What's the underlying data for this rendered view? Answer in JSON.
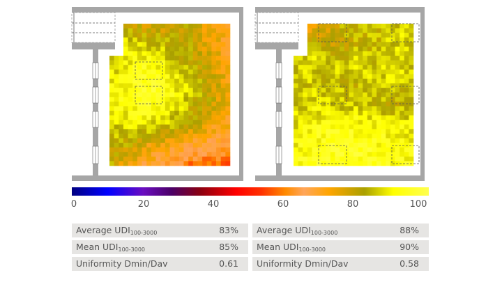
{
  "chart_data": {
    "type": "heatmap",
    "colorbar": {
      "ticks": [
        "0",
        "20",
        "40",
        "60",
        "80",
        "100"
      ],
      "range": [
        0,
        100
      ],
      "stops": [
        [
          0,
          "#000080"
        ],
        [
          10,
          "#0000ff"
        ],
        [
          20,
          "#6a0dc0"
        ],
        [
          28,
          "#4b0066"
        ],
        [
          36,
          "#8b0010"
        ],
        [
          46,
          "#ff0000"
        ],
        [
          53,
          "#ff3000"
        ],
        [
          60,
          "#ff8c00"
        ],
        [
          65,
          "#ffa55a"
        ],
        [
          72,
          "#ffa500"
        ],
        [
          82,
          "#aaa000"
        ],
        [
          90,
          "#ffff00"
        ],
        [
          100,
          "#ffff50"
        ]
      ]
    },
    "plans": [
      {
        "grid_coarse": [
          [
            80,
            80,
            75,
            78,
            80,
            72,
            70
          ],
          [
            85,
            88,
            85,
            82,
            80,
            75,
            70
          ],
          [
            86,
            90,
            92,
            88,
            82,
            78,
            72
          ],
          [
            88,
            92,
            95,
            92,
            85,
            80,
            72
          ],
          [
            88,
            92,
            93,
            90,
            84,
            80,
            72
          ],
          [
            86,
            88,
            88,
            85,
            80,
            74,
            70
          ],
          [
            82,
            80,
            74,
            72,
            68,
            66,
            64
          ],
          [
            82,
            72,
            68,
            64,
            58,
            55,
            58
          ]
        ]
      },
      {
        "grid_coarse": [
          [
            58,
            72,
            80,
            85,
            82,
            85,
            88
          ],
          [
            80,
            82,
            78,
            82,
            84,
            86,
            85
          ],
          [
            85,
            88,
            84,
            88,
            85,
            88,
            86
          ],
          [
            86,
            84,
            86,
            82,
            88,
            86,
            85
          ],
          [
            85,
            88,
            84,
            85,
            84,
            82,
            84
          ],
          [
            88,
            90,
            92,
            92,
            90,
            90,
            88
          ],
          [
            90,
            92,
            94,
            94,
            92,
            92,
            90
          ],
          [
            92,
            94,
            94,
            94,
            94,
            92,
            92
          ]
        ]
      }
    ]
  },
  "stats": [
    [
      {
        "label": "Average UDI",
        "sub": "100-3000",
        "value": "83%"
      },
      {
        "label": "Mean UDI",
        "sub": "100-3000",
        "value": "85%"
      },
      {
        "label": "Uniformity Dmin/Dav",
        "sub": "",
        "value": "0.61"
      }
    ],
    [
      {
        "label": "Average UDI",
        "sub": "100-3000",
        "value": "88%"
      },
      {
        "label": "Mean UDI",
        "sub": "100-3000",
        "value": "90%"
      },
      {
        "label": "Uniformity Dmin/Dav",
        "sub": "",
        "value": "0.58"
      }
    ]
  ],
  "colors": {
    "wall": "#a6a6a6",
    "table_bg": "#e6e5e3",
    "text": "#555555"
  }
}
